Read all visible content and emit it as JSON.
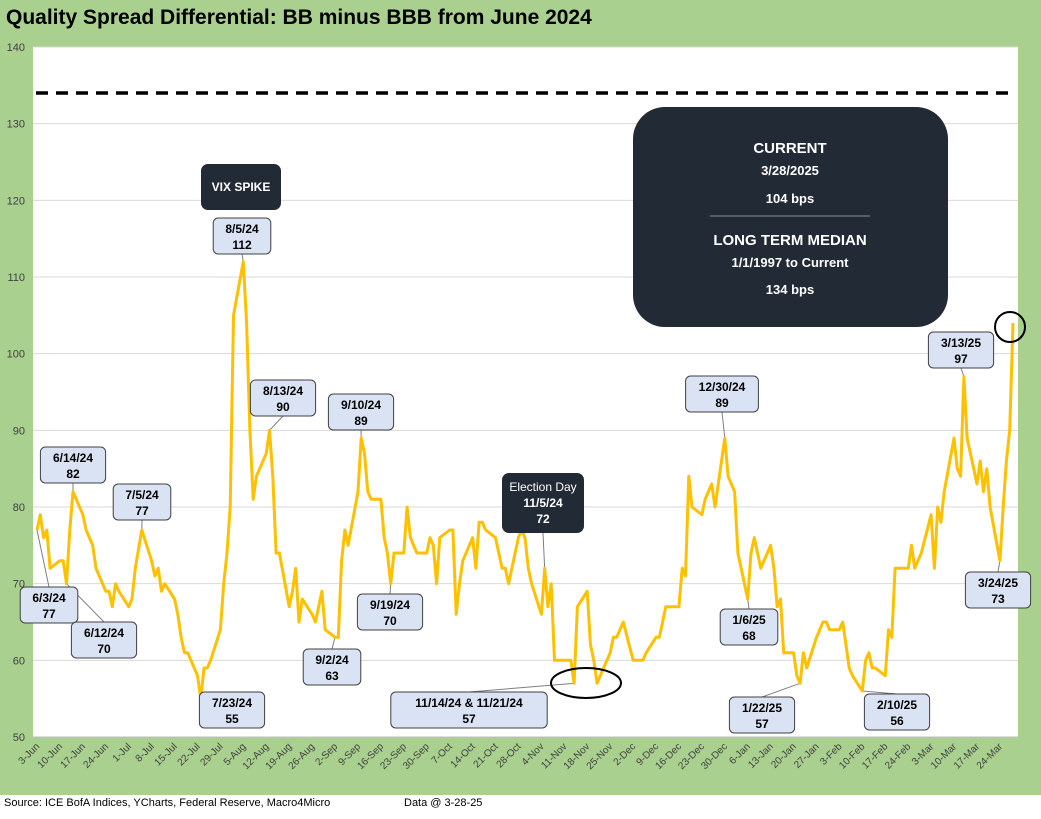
{
  "title": "Quality Spread Differential: BB minus BBB from June 2024",
  "footer": {
    "source": "Source: ICE BofA Indices, YCharts, Federal Reserve, Macro4Micro",
    "data_date": "Data @ 3-28-25"
  },
  "info_box": {
    "current_heading": "CURRENT",
    "current_date": "3/28/2025",
    "current_value": "104 bps",
    "median_heading": "LONG TERM MEDIAN",
    "median_range": "1/1/1997 to Current",
    "median_value": "134 bps"
  },
  "colors": {
    "line": "#ffc000",
    "frame": "#a9d08e",
    "callout_fill": "#dae3f3",
    "dark_box": "#222a35",
    "median_line": "#000000"
  },
  "chart_data": {
    "type": "line",
    "title": "Quality Spread Differential: BB minus BBB from June 2024",
    "xlabel": "",
    "ylabel": "",
    "ylim": [
      50,
      140
    ],
    "yticks": [
      50,
      60,
      70,
      80,
      90,
      100,
      110,
      120,
      130,
      140
    ],
    "grid": "horizontal",
    "x_start": "2024-06-03",
    "x_end": "2025-03-28",
    "x_tick_labels": [
      "3-Jun",
      "10-Jun",
      "17-Jun",
      "24-Jun",
      "1-Jul",
      "8-Jul",
      "15-Jul",
      "22-Jul",
      "29-Jul",
      "5-Aug",
      "12-Aug",
      "19-Aug",
      "26-Aug",
      "2-Sep",
      "9-Sep",
      "16-Sep",
      "23-Sep",
      "30-Sep",
      "7-Oct",
      "14-Oct",
      "21-Oct",
      "28-Oct",
      "4-Nov",
      "11-Nov",
      "18-Nov",
      "25-Nov",
      "2-Dec",
      "9-Dec",
      "16-Dec",
      "23-Dec",
      "30-Dec",
      "6-Jan",
      "13-Jan",
      "20-Jan",
      "27-Jan",
      "3-Feb",
      "10-Feb",
      "17-Feb",
      "24-Feb",
      "3-Mar",
      "10-Mar",
      "17-Mar",
      "24-Mar"
    ],
    "reference_line": {
      "value": 134,
      "style": "dashed"
    },
    "series": [
      {
        "points": [
          [
            "2024-06-03",
            77
          ],
          [
            "2024-06-04",
            79
          ],
          [
            "2024-06-05",
            76
          ],
          [
            "2024-06-06",
            77
          ],
          [
            "2024-06-07",
            72
          ],
          [
            "2024-06-10",
            73
          ],
          [
            "2024-06-11",
            73
          ],
          [
            "2024-06-12",
            70
          ],
          [
            "2024-06-13",
            77
          ],
          [
            "2024-06-14",
            82
          ],
          [
            "2024-06-17",
            79
          ],
          [
            "2024-06-18",
            77
          ],
          [
            "2024-06-20",
            75
          ],
          [
            "2024-06-21",
            72
          ],
          [
            "2024-06-24",
            69
          ],
          [
            "2024-06-25",
            69
          ],
          [
            "2024-06-26",
            67
          ],
          [
            "2024-06-27",
            70
          ],
          [
            "2024-06-28",
            69
          ],
          [
            "2024-07-01",
            67
          ],
          [
            "2024-07-02",
            68
          ],
          [
            "2024-07-03",
            72
          ],
          [
            "2024-07-05",
            77
          ],
          [
            "2024-07-08",
            73
          ],
          [
            "2024-07-09",
            71
          ],
          [
            "2024-07-10",
            72
          ],
          [
            "2024-07-11",
            69
          ],
          [
            "2024-07-12",
            70
          ],
          [
            "2024-07-15",
            68
          ],
          [
            "2024-07-16",
            66
          ],
          [
            "2024-07-17",
            63
          ],
          [
            "2024-07-18",
            61
          ],
          [
            "2024-07-19",
            61
          ],
          [
            "2024-07-22",
            58
          ],
          [
            "2024-07-23",
            55
          ],
          [
            "2024-07-24",
            59
          ],
          [
            "2024-07-25",
            59
          ],
          [
            "2024-07-26",
            60
          ],
          [
            "2024-07-29",
            64
          ],
          [
            "2024-07-30",
            70
          ],
          [
            "2024-07-31",
            74
          ],
          [
            "2024-08-01",
            80
          ],
          [
            "2024-08-02",
            105
          ],
          [
            "2024-08-05",
            112
          ],
          [
            "2024-08-06",
            104
          ],
          [
            "2024-08-07",
            90
          ],
          [
            "2024-08-08",
            81
          ],
          [
            "2024-08-09",
            84
          ],
          [
            "2024-08-12",
            87
          ],
          [
            "2024-08-13",
            90
          ],
          [
            "2024-08-14",
            84
          ],
          [
            "2024-08-15",
            74
          ],
          [
            "2024-08-16",
            74
          ],
          [
            "2024-08-19",
            67
          ],
          [
            "2024-08-20",
            69
          ],
          [
            "2024-08-21",
            72
          ],
          [
            "2024-08-22",
            65
          ],
          [
            "2024-08-23",
            68
          ],
          [
            "2024-08-26",
            66
          ],
          [
            "2024-08-27",
            65
          ],
          [
            "2024-08-28",
            67
          ],
          [
            "2024-08-29",
            69
          ],
          [
            "2024-08-30",
            64
          ],
          [
            "2024-09-02",
            63
          ],
          [
            "2024-09-03",
            63
          ],
          [
            "2024-09-04",
            73
          ],
          [
            "2024-09-05",
            77
          ],
          [
            "2024-09-06",
            75
          ],
          [
            "2024-09-09",
            82
          ],
          [
            "2024-09-10",
            89
          ],
          [
            "2024-09-11",
            87
          ],
          [
            "2024-09-12",
            82
          ],
          [
            "2024-09-13",
            81
          ],
          [
            "2024-09-16",
            81
          ],
          [
            "2024-09-17",
            76
          ],
          [
            "2024-09-18",
            74
          ],
          [
            "2024-09-19",
            70
          ],
          [
            "2024-09-20",
            74
          ],
          [
            "2024-09-23",
            74
          ],
          [
            "2024-09-24",
            80
          ],
          [
            "2024-09-25",
            76
          ],
          [
            "2024-09-26",
            75
          ],
          [
            "2024-09-27",
            74
          ],
          [
            "2024-09-30",
            74
          ],
          [
            "2024-10-01",
            76
          ],
          [
            "2024-10-02",
            75
          ],
          [
            "2024-10-03",
            70
          ],
          [
            "2024-10-04",
            76
          ],
          [
            "2024-10-07",
            77
          ],
          [
            "2024-10-08",
            77
          ],
          [
            "2024-10-09",
            66
          ],
          [
            "2024-10-10",
            70
          ],
          [
            "2024-10-11",
            73
          ],
          [
            "2024-10-14",
            76
          ],
          [
            "2024-10-15",
            72
          ],
          [
            "2024-10-16",
            78
          ],
          [
            "2024-10-17",
            78
          ],
          [
            "2024-10-18",
            77
          ],
          [
            "2024-10-21",
            76
          ],
          [
            "2024-10-22",
            74
          ],
          [
            "2024-10-23",
            72
          ],
          [
            "2024-10-24",
            72
          ],
          [
            "2024-10-25",
            70
          ],
          [
            "2024-10-28",
            76
          ],
          [
            "2024-10-29",
            77
          ],
          [
            "2024-10-30",
            76
          ],
          [
            "2024-10-31",
            72
          ],
          [
            "2024-11-01",
            70
          ],
          [
            "2024-11-04",
            66
          ],
          [
            "2024-11-05",
            72
          ],
          [
            "2024-11-06",
            67
          ],
          [
            "2024-11-07",
            70
          ],
          [
            "2024-11-08",
            60
          ],
          [
            "2024-11-11",
            60
          ],
          [
            "2024-11-12",
            60
          ],
          [
            "2024-11-13",
            60
          ],
          [
            "2024-11-14",
            57
          ],
          [
            "2024-11-15",
            67
          ],
          [
            "2024-11-18",
            69
          ],
          [
            "2024-11-19",
            62
          ],
          [
            "2024-11-20",
            60
          ],
          [
            "2024-11-21",
            57
          ],
          [
            "2024-11-22",
            58
          ],
          [
            "2024-11-25",
            61
          ],
          [
            "2024-11-26",
            63
          ],
          [
            "2024-11-27",
            63
          ],
          [
            "2024-11-29",
            65
          ],
          [
            "2024-12-02",
            60
          ],
          [
            "2024-12-03",
            60
          ],
          [
            "2024-12-04",
            60
          ],
          [
            "2024-12-05",
            60
          ],
          [
            "2024-12-06",
            61
          ],
          [
            "2024-12-09",
            63
          ],
          [
            "2024-12-10",
            63
          ],
          [
            "2024-12-11",
            65
          ],
          [
            "2024-12-12",
            67
          ],
          [
            "2024-12-13",
            67
          ],
          [
            "2024-12-16",
            67
          ],
          [
            "2024-12-17",
            72
          ],
          [
            "2024-12-18",
            71
          ],
          [
            "2024-12-19",
            84
          ],
          [
            "2024-12-20",
            80
          ],
          [
            "2024-12-23",
            79
          ],
          [
            "2024-12-24",
            81
          ],
          [
            "2024-12-26",
            83
          ],
          [
            "2024-12-27",
            80
          ],
          [
            "2024-12-30",
            89
          ],
          [
            "2024-12-31",
            84
          ],
          [
            "2025-01-02",
            82
          ],
          [
            "2025-01-03",
            74
          ],
          [
            "2025-01-06",
            68
          ],
          [
            "2025-01-07",
            74
          ],
          [
            "2025-01-08",
            76
          ],
          [
            "2025-01-10",
            72
          ],
          [
            "2025-01-13",
            75
          ],
          [
            "2025-01-14",
            72
          ],
          [
            "2025-01-15",
            67
          ],
          [
            "2025-01-16",
            68
          ],
          [
            "2025-01-17",
            61
          ],
          [
            "2025-01-20",
            61
          ],
          [
            "2025-01-21",
            58
          ],
          [
            "2025-01-22",
            57
          ],
          [
            "2025-01-23",
            61
          ],
          [
            "2025-01-24",
            59
          ],
          [
            "2025-01-27",
            63
          ],
          [
            "2025-01-28",
            64
          ],
          [
            "2025-01-29",
            65
          ],
          [
            "2025-01-30",
            65
          ],
          [
            "2025-01-31",
            64
          ],
          [
            "2025-02-03",
            64
          ],
          [
            "2025-02-04",
            65
          ],
          [
            "2025-02-05",
            62
          ],
          [
            "2025-02-06",
            59
          ],
          [
            "2025-02-07",
            58
          ],
          [
            "2025-02-10",
            56
          ],
          [
            "2025-02-11",
            60
          ],
          [
            "2025-02-12",
            61
          ],
          [
            "2025-02-13",
            59
          ],
          [
            "2025-02-14",
            59
          ],
          [
            "2025-02-17",
            58
          ],
          [
            "2025-02-18",
            64
          ],
          [
            "2025-02-19",
            63
          ],
          [
            "2025-02-20",
            72
          ],
          [
            "2025-02-21",
            72
          ],
          [
            "2025-02-24",
            72
          ],
          [
            "2025-02-25",
            75
          ],
          [
            "2025-02-26",
            72
          ],
          [
            "2025-02-27",
            73
          ],
          [
            "2025-02-28",
            74
          ],
          [
            "2025-03-03",
            79
          ],
          [
            "2025-03-04",
            72
          ],
          [
            "2025-03-05",
            80
          ],
          [
            "2025-03-06",
            78
          ],
          [
            "2025-03-07",
            82
          ],
          [
            "2025-03-10",
            89
          ],
          [
            "2025-03-11",
            85
          ],
          [
            "2025-03-12",
            84
          ],
          [
            "2025-03-13",
            97
          ],
          [
            "2025-03-14",
            89
          ],
          [
            "2025-03-17",
            83
          ],
          [
            "2025-03-18",
            86
          ],
          [
            "2025-03-19",
            82
          ],
          [
            "2025-03-20",
            85
          ],
          [
            "2025-03-21",
            80
          ],
          [
            "2025-03-24",
            73
          ],
          [
            "2025-03-25",
            80
          ],
          [
            "2025-03-26",
            86
          ],
          [
            "2025-03-27",
            90
          ],
          [
            "2025-03-28",
            104
          ]
        ]
      }
    ],
    "annotations": [
      {
        "date": "2024-06-14",
        "value": 82,
        "label_date": "6/14/24",
        "label_value": "82"
      },
      {
        "date": "2024-06-03",
        "value": 77,
        "label_date": "6/3/24",
        "label_value": "77"
      },
      {
        "date": "2024-06-12",
        "value": 70,
        "label_date": "6/12/24",
        "label_value": "70"
      },
      {
        "date": "2024-07-05",
        "value": 77,
        "label_date": "7/5/24",
        "label_value": "77"
      },
      {
        "date": "2024-07-23",
        "value": 55,
        "label_date": "7/23/24",
        "label_value": "55"
      },
      {
        "date": "2024-08-05",
        "value": 112,
        "label_date": "8/5/24",
        "label_value": "112"
      },
      {
        "date": "2024-08-13",
        "value": 90,
        "label_date": "8/13/24",
        "label_value": "90"
      },
      {
        "date": "2024-09-02",
        "value": 63,
        "label_date": "9/2/24",
        "label_value": "63"
      },
      {
        "date": "2024-09-10",
        "value": 89,
        "label_date": "9/10/24",
        "label_value": "89"
      },
      {
        "date": "2024-09-19",
        "value": 70,
        "label_date": "9/19/24",
        "label_value": "70"
      },
      {
        "date": "2024-11-14",
        "value": 57,
        "label_date": "11/14/24 & 11/21/24",
        "label_value": "57"
      },
      {
        "date": "2024-12-30",
        "value": 89,
        "label_date": "12/30/24",
        "label_value": "89"
      },
      {
        "date": "2025-01-06",
        "value": 68,
        "label_date": "1/6/25",
        "label_value": "68"
      },
      {
        "date": "2025-01-22",
        "value": 57,
        "label_date": "1/22/25",
        "label_value": "57"
      },
      {
        "date": "2025-02-10",
        "value": 56,
        "label_date": "2/10/25",
        "label_value": "56"
      },
      {
        "date": "2025-03-13",
        "value": 97,
        "label_date": "3/13/25",
        "label_value": "97"
      },
      {
        "date": "2025-03-24",
        "value": 73,
        "label_date": "3/24/25",
        "label_value": "73"
      }
    ],
    "dark_labels": [
      {
        "date": "2024-08-05",
        "lines": [
          "VIX SPIKE"
        ]
      },
      {
        "date": "2024-11-05",
        "lines": [
          "Election Day",
          "11/5/24",
          "72"
        ]
      }
    ]
  }
}
